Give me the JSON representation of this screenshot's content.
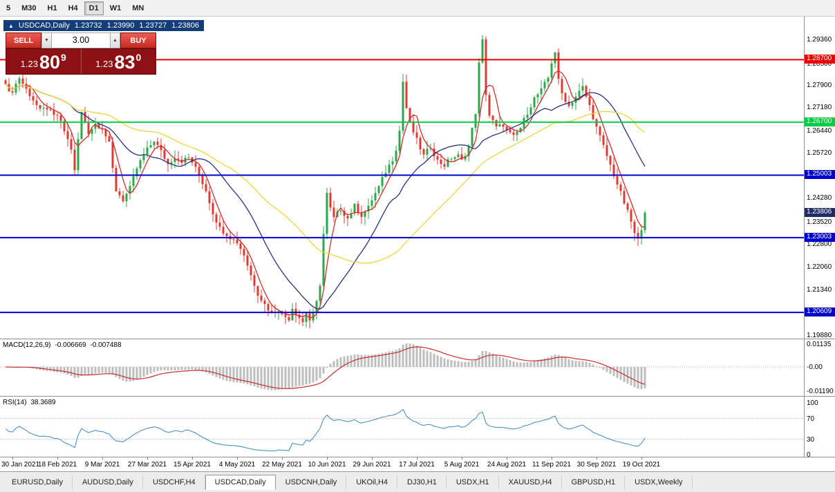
{
  "toolbar": {
    "items": [
      {
        "label": "5",
        "active": false
      },
      {
        "label": "M30",
        "active": false
      },
      {
        "label": "H1",
        "active": false
      },
      {
        "label": "H4",
        "active": false
      },
      {
        "label": "D1",
        "active": true
      },
      {
        "label": "W1",
        "active": false
      },
      {
        "label": "MN",
        "active": false
      }
    ]
  },
  "ohlc_bar": {
    "direction_icon": "▲",
    "symbol": "USDCAD,Daily",
    "open": "1.23732",
    "high": "1.23990",
    "low": "1.23727",
    "close": "1.23806"
  },
  "trade_panel": {
    "sell_label": "SELL",
    "buy_label": "BUY",
    "volume": "3.00",
    "spin_down_icon": "▼",
    "spin_up_icon": "▲",
    "sell_price_int": "1.23",
    "sell_price_big": "80",
    "sell_price_sup": "9",
    "buy_price_int": "1.23",
    "buy_price_big": "83",
    "buy_price_sup": "0"
  },
  "indicators": {
    "macd": {
      "name": "MACD(12,26,9)",
      "value1": "-0.006669",
      "value2": "-0.007488"
    },
    "rsi": {
      "name": "RSI(14)",
      "value": "38.3689"
    }
  },
  "tabbar": {
    "tabs": [
      {
        "label": "EURUSD,Daily",
        "active": false
      },
      {
        "label": "AUDUSD,Daily",
        "active": false
      },
      {
        "label": "USDCHF,H4",
        "active": false
      },
      {
        "label": "USDCAD,Daily",
        "active": true
      },
      {
        "label": "USDCNH,Daily",
        "active": false
      },
      {
        "label": "UKOil,H4",
        "active": false
      },
      {
        "label": "DJ30,H1",
        "active": false
      },
      {
        "label": "USDX,H1",
        "active": false
      },
      {
        "label": "XAUUSD,H4",
        "active": false
      },
      {
        "label": "GBPUSD,H1",
        "active": false
      },
      {
        "label": "USDX,Weekly",
        "active": false
      }
    ]
  },
  "chart_data": {
    "type": "candlestick",
    "symbol": "USDCAD",
    "timeframe": "Daily",
    "ohlc": {
      "open": 1.23732,
      "high": 1.2399,
      "low": 1.23727,
      "close": 1.23806
    },
    "ylim": [
      1.1977,
      1.3008
    ],
    "bull_color": "#2aa84a",
    "bear_color": "#dd3b32",
    "y_ticks": [
      "1.29360",
      "1.28580",
      "1.27900",
      "1.27180",
      "1.26440",
      "1.25720",
      "1.24280",
      "1.23520",
      "1.22800",
      "1.22060",
      "1.21340",
      "1.19880"
    ],
    "x_labels": [
      "30 Jan 2021",
      "18 Feb 2021",
      "9 Mar 2021",
      "27 Mar 2021",
      "15 Apr 2021",
      "4 May 2021",
      "22 May 2021",
      "10 Jun 2021",
      "29 Jun 2021",
      "17 Jul 2021",
      "5 Aug 2021",
      "24 Aug 2021",
      "11 Sep 2021",
      "30 Sep 2021",
      "19 Oct 2021"
    ],
    "x_label_step": 13,
    "n_candles": 186,
    "hlines": [
      {
        "price": 1.287,
        "label": "1.28700",
        "color": "#ee0000"
      },
      {
        "price": 1.267,
        "label": "1.26700",
        "color": "#00cc44"
      },
      {
        "price": 1.25003,
        "label": "1.25003",
        "color": "#0000cc"
      },
      {
        "price": 1.23003,
        "label": "1.23003",
        "color": "#0000cc"
      },
      {
        "price": 1.20609,
        "label": "1.20609",
        "color": "#0000cc"
      }
    ],
    "current_price": {
      "value": 1.23806,
      "label": "1.23806",
      "color": "#1f2c67"
    },
    "moving_averages": [
      {
        "period": 5,
        "color": "#d42a2a"
      },
      {
        "period": 20,
        "color": "#26317f"
      },
      {
        "period": 45,
        "color": "#efd53a"
      }
    ],
    "macd": {
      "params": [
        12,
        26,
        9
      ],
      "value_line": -0.006669,
      "value_signal": -0.007488,
      "y_ticks": [
        "0.01135",
        "-0.00",
        "-0.01190"
      ],
      "hist_color": "#bdbdbd",
      "signal_color": "#cc2a2a"
    },
    "rsi": {
      "period": 14,
      "value": 38.3689,
      "levels": [
        70,
        30
      ],
      "y_ticks": [
        "100",
        "70",
        "30",
        "0"
      ],
      "color": "#4a90c8"
    },
    "close_keypoints": [
      [
        0,
        1.28
      ],
      [
        1,
        1.2762
      ],
      [
        2,
        1.2772
      ],
      [
        4,
        1.2812
      ],
      [
        6,
        1.2775
      ],
      [
        8,
        1.2742
      ],
      [
        10,
        1.2706
      ],
      [
        12,
        1.2716
      ],
      [
        14,
        1.2688
      ],
      [
        15,
        1.2692
      ],
      [
        17,
        1.2642
      ],
      [
        19,
        1.2585
      ],
      [
        20,
        1.2512
      ],
      [
        21,
        1.2615
      ],
      [
        22,
        1.27
      ],
      [
        24,
        1.2638
      ],
      [
        26,
        1.2665
      ],
      [
        28,
        1.2652
      ],
      [
        30,
        1.26
      ],
      [
        31,
        1.252
      ],
      [
        32,
        1.2452
      ],
      [
        34,
        1.2422
      ],
      [
        36,
        1.2458
      ],
      [
        38,
        1.2522
      ],
      [
        40,
        1.2565
      ],
      [
        41,
        1.2582
      ],
      [
        43,
        1.2612
      ],
      [
        45,
        1.2576
      ],
      [
        47,
        1.2536
      ],
      [
        49,
        1.256
      ],
      [
        51,
        1.2546
      ],
      [
        53,
        1.2556
      ],
      [
        54,
        1.2542
      ],
      [
        56,
        1.25
      ],
      [
        58,
        1.2452
      ],
      [
        60,
        1.238
      ],
      [
        62,
        1.233
      ],
      [
        64,
        1.2312
      ],
      [
        66,
        1.2292
      ],
      [
        67,
        1.2286
      ],
      [
        69,
        1.2246
      ],
      [
        71,
        1.218
      ],
      [
        73,
        1.2122
      ],
      [
        75,
        1.2086
      ],
      [
        77,
        1.2058
      ],
      [
        79,
        1.2072
      ],
      [
        80,
        1.2052
      ],
      [
        82,
        1.2042
      ],
      [
        83,
        1.2076
      ],
      [
        84,
        1.206
      ],
      [
        86,
        1.203
      ],
      [
        87,
        1.2062
      ],
      [
        88,
        1.2036
      ],
      [
        89,
        1.2052
      ],
      [
        90,
        1.2092
      ],
      [
        91,
        1.2152
      ],
      [
        92,
        1.2312
      ],
      [
        93,
        1.244
      ],
      [
        94,
        1.2392
      ],
      [
        95,
        1.2362
      ],
      [
        97,
        1.2392
      ],
      [
        99,
        1.2362
      ],
      [
        101,
        1.2402
      ],
      [
        103,
        1.2372
      ],
      [
        105,
        1.2396
      ],
      [
        106,
        1.2422
      ],
      [
        108,
        1.2462
      ],
      [
        110,
        1.2512
      ],
      [
        112,
        1.2552
      ],
      [
        113,
        1.2586
      ],
      [
        114,
        1.2642
      ],
      [
        115,
        1.28
      ],
      [
        116,
        1.2716
      ],
      [
        117,
        1.2666
      ],
      [
        119,
        1.2612
      ],
      [
        121,
        1.2562
      ],
      [
        123,
        1.2592
      ],
      [
        125,
        1.2546
      ],
      [
        127,
        1.2532
      ],
      [
        129,
        1.2556
      ],
      [
        131,
        1.2562
      ],
      [
        132,
        1.2546
      ],
      [
        134,
        1.2592
      ],
      [
        136,
        1.2702
      ],
      [
        137,
        1.2856
      ],
      [
        138,
        1.293
      ],
      [
        139,
        1.2762
      ],
      [
        140,
        1.2692
      ],
      [
        142,
        1.2652
      ],
      [
        144,
        1.2662
      ],
      [
        145,
        1.2642
      ],
      [
        147,
        1.2622
      ],
      [
        149,
        1.2652
      ],
      [
        151,
        1.2702
      ],
      [
        153,
        1.2746
      ],
      [
        155,
        1.2772
      ],
      [
        157,
        1.2812
      ],
      [
        158,
        1.2862
      ],
      [
        159,
        1.2896
      ],
      [
        160,
        1.2802
      ],
      [
        161,
        1.2762
      ],
      [
        163,
        1.2722
      ],
      [
        165,
        1.2752
      ],
      [
        167,
        1.2782
      ],
      [
        169,
        1.2722
      ],
      [
        171,
        1.2652
      ],
      [
        173,
        1.2592
      ],
      [
        175,
        1.2532
      ],
      [
        177,
        1.2472
      ],
      [
        179,
        1.2412
      ],
      [
        181,
        1.2352
      ],
      [
        182,
        1.2312
      ],
      [
        183,
        1.2292
      ],
      [
        184,
        1.2332
      ],
      [
        185,
        1.23806
      ]
    ]
  }
}
